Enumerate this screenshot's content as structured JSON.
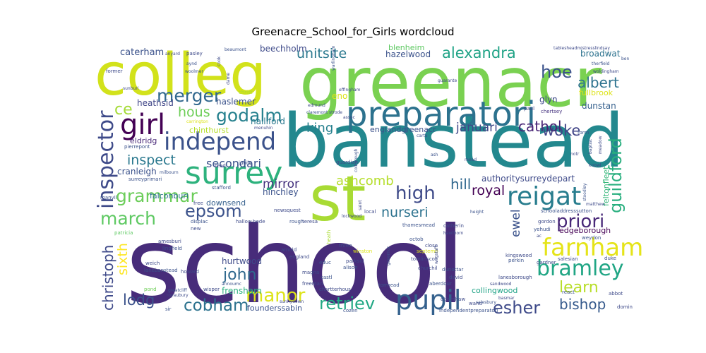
{
  "title": "Greenacre_School_for_Girls wordcloud",
  "words": [
    {
      "text": "school",
      "color": "#472c7a"
    },
    {
      "text": "banstead",
      "color": "#23888e"
    },
    {
      "text": "greenacr",
      "color": "#7ad151"
    },
    {
      "text": "colleg",
      "color": "#d2e21b"
    },
    {
      "text": "st",
      "color": "#a8db34"
    },
    {
      "text": "preparatori",
      "color": "#2c728e"
    },
    {
      "text": "surrey",
      "color": "#2db27d"
    },
    {
      "text": "independ",
      "color": "#3b528b"
    },
    {
      "text": "girl",
      "color": "#440154"
    },
    {
      "text": "inspector",
      "color": "#3e4a89"
    },
    {
      "text": "farnham",
      "color": "#e5e419"
    },
    {
      "text": "reigat",
      "color": "#287d8e"
    },
    {
      "text": "pupil",
      "color": "#34618d"
    },
    {
      "text": "bramley",
      "color": "#21a685"
    },
    {
      "text": "merger",
      "color": "#31688e"
    },
    {
      "text": "godalm",
      "color": "#26818e"
    },
    {
      "text": "grammar",
      "color": "#6ccd5a"
    },
    {
      "text": "epsom",
      "color": "#3b528b"
    },
    {
      "text": "manor",
      "color": "#dde318"
    },
    {
      "text": "march",
      "color": "#5ec962"
    },
    {
      "text": "high",
      "color": "#3e4a89"
    },
    {
      "text": "priori",
      "color": "#482878"
    },
    {
      "text": "guildford",
      "color": "#29af7f"
    },
    {
      "text": "cobham",
      "color": "#2c728e"
    },
    {
      "text": "john",
      "color": "#30698e"
    },
    {
      "text": "retriev",
      "color": "#22a884"
    },
    {
      "text": "esher",
      "color": "#3e4a89"
    },
    {
      "text": "christoph",
      "color": "#3e4989"
    },
    {
      "text": "sixth",
      "color": "#fde725"
    },
    {
      "text": "lodg",
      "color": "#3b528b"
    },
    {
      "text": "learn",
      "color": "#b8de29"
    },
    {
      "text": "bishop",
      "color": "#375b8d"
    },
    {
      "text": "hoe",
      "color": "#3b528b"
    },
    {
      "text": "alexandra",
      "color": "#20a386"
    },
    {
      "text": "albert",
      "color": "#2c728e"
    },
    {
      "text": "woke",
      "color": "#414487"
    },
    {
      "text": "cathol",
      "color": "#482475"
    },
    {
      "text": "hous",
      "color": "#6ece58"
    },
    {
      "text": "ce",
      "color": "#a5db36"
    },
    {
      "text": "unitsite",
      "color": "#2a788e"
    },
    {
      "text": "king",
      "color": "#27808e"
    },
    {
      "text": "januari",
      "color": "#3f4788"
    },
    {
      "text": "inspect",
      "color": "#2a788e"
    },
    {
      "text": "secondari",
      "color": "#3b528b"
    },
    {
      "text": "mirror",
      "color": "#46337f"
    },
    {
      "text": "ashcomb",
      "color": "#b5de2b"
    },
    {
      "text": "hill",
      "color": "#31688e"
    },
    {
      "text": "royal",
      "color": "#440154"
    },
    {
      "text": "nurseri",
      "color": "#2c728e"
    },
    {
      "text": "ewel",
      "color": "#3b528b"
    },
    {
      "text": "broadwat",
      "color": "#2c728e"
    },
    {
      "text": "caterham",
      "color": "#3b528b"
    },
    {
      "text": "beechholm",
      "color": "#3e4a89"
    },
    {
      "text": "blenheim",
      "color": "#5ec962"
    },
    {
      "text": "hazelwood",
      "color": "#3b528b"
    },
    {
      "text": "fullbrook",
      "color": "#dde318"
    },
    {
      "text": "glyn",
      "color": "#3e4989"
    },
    {
      "text": "dunstan",
      "color": "#35608d"
    },
    {
      "text": "heathsid",
      "color": "#404688"
    },
    {
      "text": "haslemer",
      "color": "#3b528b"
    },
    {
      "text": "halliford",
      "color": "#2a788e"
    },
    {
      "text": "chinthurst",
      "color": "#b5de2b"
    },
    {
      "text": "englandgreenacr",
      "color": "#3b528b"
    },
    {
      "text": "eldridg",
      "color": "#482878"
    },
    {
      "text": "cranleigh",
      "color": "#3b528b"
    },
    {
      "text": "authoritysurreydepart",
      "color": "#3e4a89"
    },
    {
      "text": "feltonfleet",
      "color": "#35b779"
    },
    {
      "text": "hinchley",
      "color": "#3b528b"
    },
    {
      "text": "falconburi",
      "color": "#2c728e"
    },
    {
      "text": "downsend",
      "color": "#35608d"
    },
    {
      "text": "hurtwood",
      "color": "#3e4a89"
    },
    {
      "text": "frensham",
      "color": "#29af7f"
    },
    {
      "text": "edgeborough",
      "color": "#440154"
    },
    {
      "text": "collingwood",
      "color": "#20a386"
    },
    {
      "text": "founderssabin",
      "color": "#3b528b"
    },
    {
      "text": "eno",
      "color": "#dde318"
    },
    {
      "text": "christ",
      "color": "#aadc32"
    },
    {
      "text": "effingham",
      "color": "#3e4a89"
    },
    {
      "text": "form",
      "color": "#3b528b"
    },
    {
      "text": "chertsey",
      "color": "#46337f"
    },
    {
      "text": "paul",
      "color": "#414487"
    },
    {
      "text": "stafford",
      "color": "#3b528b"
    },
    {
      "text": "reed",
      "color": "#3e4989"
    },
    {
      "text": "jubile",
      "color": "#3b528b"
    },
    {
      "text": "guardian",
      "color": "#3e4a89"
    },
    {
      "text": "surreyprimari",
      "color": "#3b528b"
    },
    {
      "text": "pierrepont",
      "color": "#3b528b"
    },
    {
      "text": "manvil",
      "color": "#3b528b"
    },
    {
      "text": "free",
      "color": "#3e4989"
    },
    {
      "text": "newsquest",
      "color": "#3e4a89"
    },
    {
      "text": "local",
      "color": "#3e4a89"
    },
    {
      "text": "thamesmead",
      "color": "#3b528b"
    },
    {
      "text": "displac",
      "color": "#3b528b"
    },
    {
      "text": "hallow",
      "color": "#3e4a89"
    },
    {
      "text": "bede",
      "color": "#3e4a89"
    },
    {
      "text": "new",
      "color": "#3e4a89"
    },
    {
      "text": "patricia",
      "color": "#5ec962"
    },
    {
      "text": "amesburi",
      "color": "#3e4a89"
    },
    {
      "text": "lingfield",
      "color": "#3b528b"
    },
    {
      "text": "weich",
      "color": "#3e4a89"
    },
    {
      "text": "lanebanstead",
      "color": "#3b528b"
    },
    {
      "text": "howard",
      "color": "#3e4a89"
    },
    {
      "text": "pond",
      "color": "#6ece58"
    },
    {
      "text": "sir",
      "color": "#3b528b"
    },
    {
      "text": "wisper",
      "color": "#3e4a89"
    },
    {
      "text": "teresa",
      "color": "#3e4a89"
    },
    {
      "text": "rough",
      "color": "#3b528b"
    },
    {
      "text": "arnold",
      "color": "#3e4a89"
    },
    {
      "text": "england",
      "color": "#3e4a89"
    },
    {
      "text": "educ",
      "color": "#3b528b"
    },
    {
      "text": "heath",
      "color": "#aadc32"
    },
    {
      "text": "three",
      "color": "#3e4a89"
    },
    {
      "text": "winston",
      "color": "#dde318"
    },
    {
      "text": "parksid",
      "color": "#3e4a89"
    },
    {
      "text": "alison",
      "color": "#3b528b"
    },
    {
      "text": "magna",
      "color": "#3e4a89"
    },
    {
      "text": "castl",
      "color": "#3b528b"
    },
    {
      "text": "freeman",
      "color": "#3e4a89"
    },
    {
      "text": "chartterhous",
      "color": "#3e4a89"
    },
    {
      "text": "cozen",
      "color": "#3b528b"
    },
    {
      "text": "catherin",
      "color": "#3e4a89"
    },
    {
      "text": "octob",
      "color": "#3b528b"
    },
    {
      "text": "close",
      "color": "#3e4a89"
    },
    {
      "text": "septemb",
      "color": "#dde318"
    },
    {
      "text": "tomlinscot",
      "color": "#3e4a89"
    },
    {
      "text": "churchil",
      "color": "#3e4a89"
    },
    {
      "text": "dunottar",
      "color": "#3b528b"
    },
    {
      "text": "david",
      "color": "#3e4a89"
    },
    {
      "text": "aberdour",
      "color": "#3b528b"
    },
    {
      "text": "ottershaw",
      "color": "#3e4a89"
    },
    {
      "text": "independentpreparatori",
      "color": "#3b528b"
    },
    {
      "text": "wand",
      "color": "#3e4a89"
    },
    {
      "text": "tormead",
      "color": "#3b528b"
    },
    {
      "text": "kingswood",
      "color": "#3e4a89"
    },
    {
      "text": "lanesborough",
      "color": "#3e4a89"
    },
    {
      "text": "perkin",
      "color": "#3b528b"
    },
    {
      "text": "salesian",
      "color": "#3e4a89"
    },
    {
      "text": "gardner",
      "color": "#3e4a89"
    },
    {
      "text": "schooladdresssutton",
      "color": "#3b528b"
    },
    {
      "text": "react",
      "color": "#3b528b"
    },
    {
      "text": "abbot",
      "color": "#3e4a89"
    },
    {
      "text": "domin",
      "color": "#3e4a89"
    },
    {
      "text": "weydon",
      "color": "#3b528b"
    },
    {
      "text": "duke",
      "color": "#3e4a89"
    },
    {
      "text": "gordon",
      "color": "#3e4a89"
    },
    {
      "text": "yehudi",
      "color": "#3b528b"
    },
    {
      "text": "menuhin",
      "color": "#3e4a89"
    },
    {
      "text": "edmund",
      "color": "#3e4a89"
    },
    {
      "text": "claremont",
      "color": "#3b528b"
    },
    {
      "text": "strode",
      "color": "#3e4a89"
    },
    {
      "text": "carta",
      "color": "#3b528b"
    },
    {
      "text": "assoc",
      "color": "#3e4a89"
    },
    {
      "text": "guarante",
      "color": "#3e4a89"
    },
    {
      "text": "therfield",
      "color": "#3b528b"
    },
    {
      "text": "woldingham",
      "color": "#3e4a89"
    },
    {
      "text": "tablesheadmistresslindsay",
      "color": "#3e4a89"
    },
    {
      "text": "ben",
      "color": "#3b528b"
    },
    {
      "text": "former",
      "color": "#3e4a89"
    },
    {
      "text": "sunburi",
      "color": "#3e4a89"
    },
    {
      "text": "woolmer",
      "color": "#3b528b"
    },
    {
      "text": "pasley",
      "color": "#3e4a89"
    },
    {
      "text": "beaumont",
      "color": "#3b528b"
    },
    {
      "text": "cook",
      "color": "#3e4a89"
    },
    {
      "text": "dame",
      "color": "#3e4a89"
    },
    {
      "text": "warlingham",
      "color": "#3b528b"
    },
    {
      "text": "carrington",
      "color": "#dde318"
    },
    {
      "text": "milbourn",
      "color": "#3b528b"
    },
    {
      "text": "knowl",
      "color": "#3e4a89"
    },
    {
      "text": "mead",
      "color": "#3e4a89"
    },
    {
      "text": "ash",
      "color": "#3b528b"
    },
    {
      "text": "notr",
      "color": "#3e4a89"
    },
    {
      "text": "baptist",
      "color": "#3b528b"
    },
    {
      "text": "meadow",
      "color": "#3e4a89"
    },
    {
      "text": "height",
      "color": "#3b528b"
    },
    {
      "text": "matthew",
      "color": "#3e4a89"
    },
    {
      "text": "stoodley",
      "color": "#3b528b"
    },
    {
      "text": "hawthorn",
      "color": "#3e4a89"
    },
    {
      "text": "anyard",
      "color": "#3e4a89"
    },
    {
      "text": "annoumc",
      "color": "#3b528b"
    },
    {
      "text": "sunnydown",
      "color": "#3e4a89"
    },
    {
      "text": "greatcliff",
      "color": "#3b528b"
    },
    {
      "text": "royaubury",
      "color": "#3e4a89"
    },
    {
      "text": "saint",
      "color": "#3e4a89"
    },
    {
      "text": "colborough",
      "color": "#3b528b"
    },
    {
      "text": "lockwood",
      "color": "#3e4a89"
    },
    {
      "text": "salesbury",
      "color": "#3b528b"
    },
    {
      "text": "basmar",
      "color": "#3e4a89"
    },
    {
      "text": "wagstaff",
      "color": "#3e4a89"
    },
    {
      "text": "governor",
      "color": "#3b528b"
    },
    {
      "text": "ac",
      "color": "#3e4a89"
    },
    {
      "text": "sandwood",
      "color": "#3e4a89"
    },
    {
      "text": "aynd",
      "color": "#3b528b"
    }
  ]
}
